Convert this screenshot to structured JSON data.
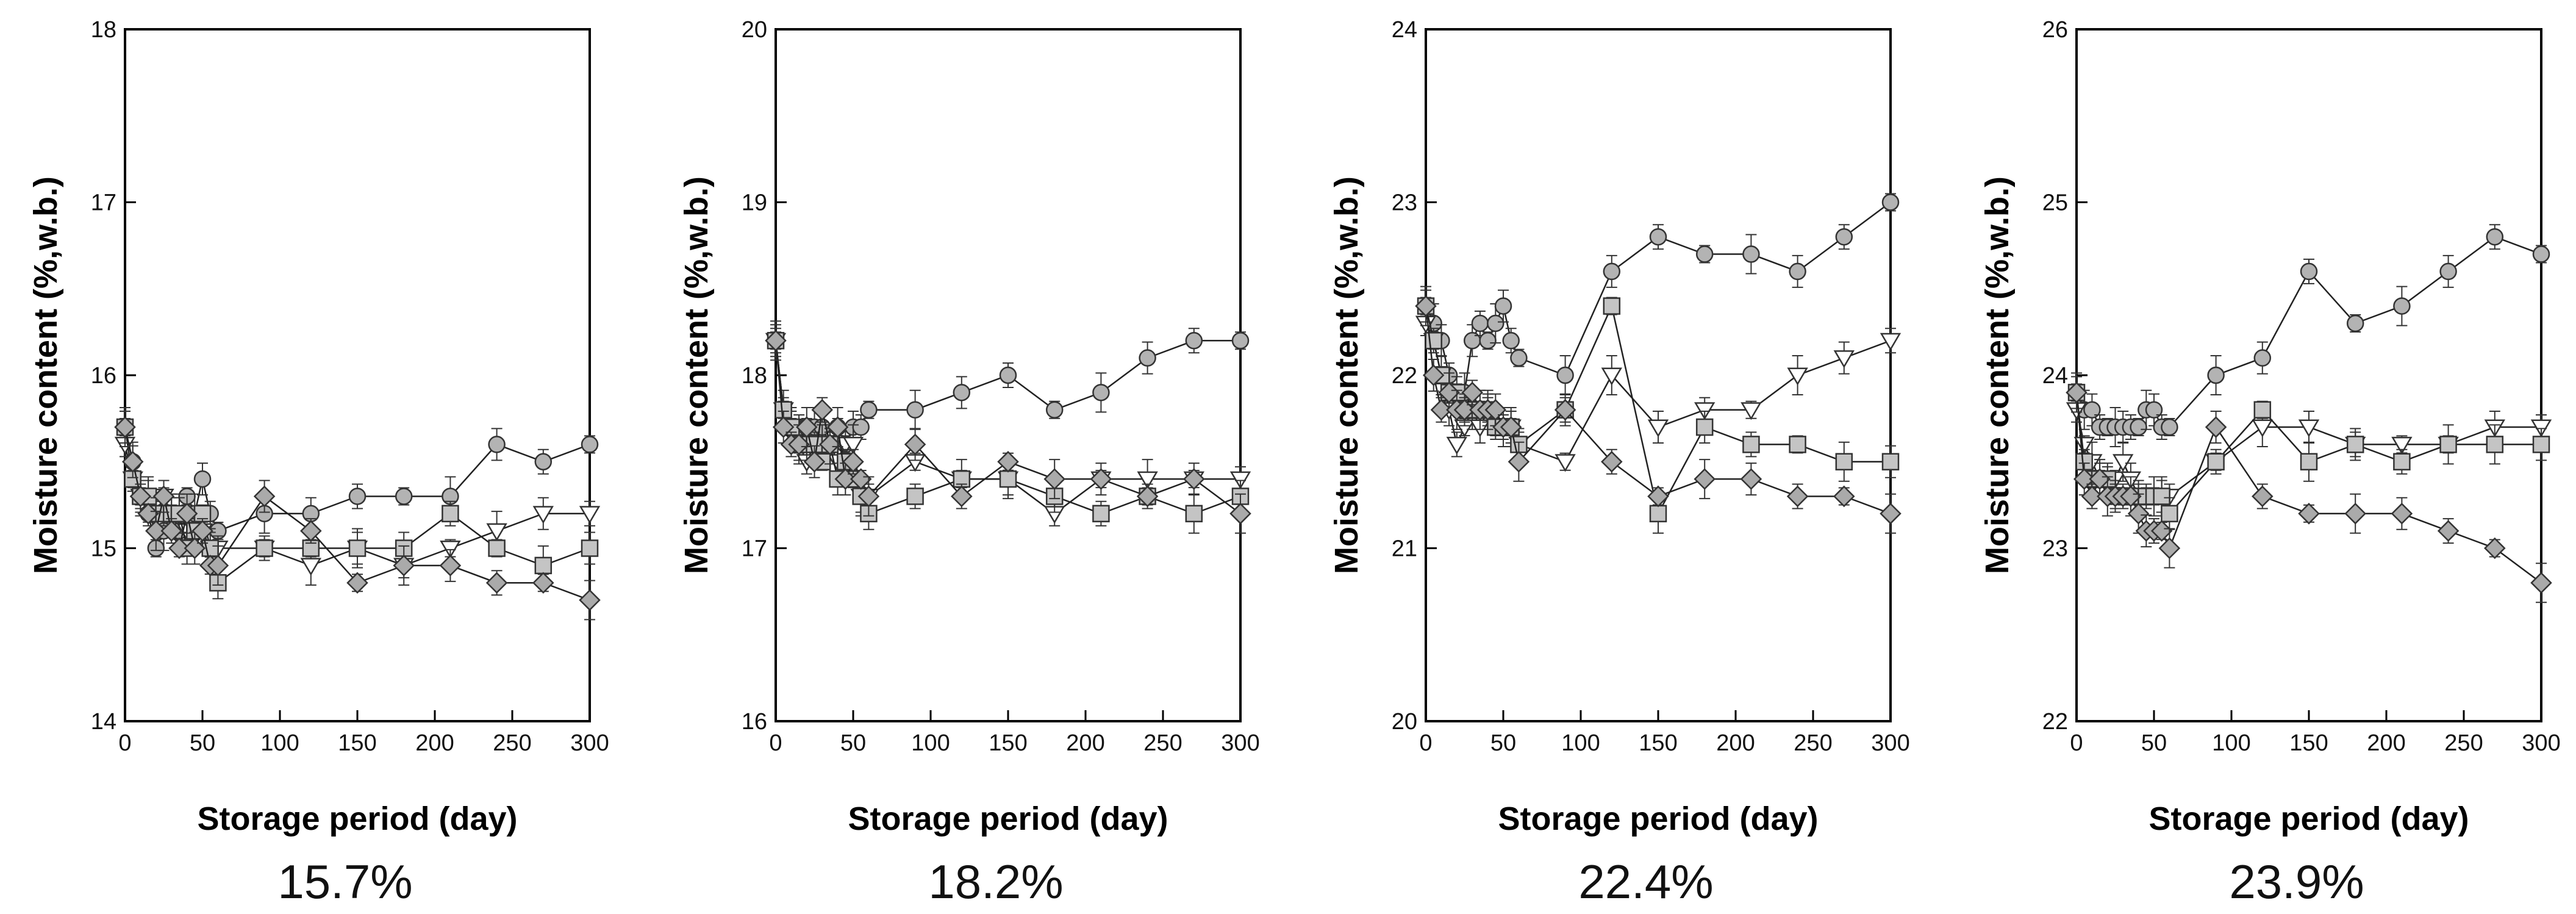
{
  "chart_data": [
    {
      "type": "line",
      "caption": "15.7%",
      "xlabel": "Storage period (day)",
      "ylabel": "Moisture content (%,w.b.)",
      "xlim": [
        0,
        300
      ],
      "ylim": [
        14,
        18
      ],
      "xticks": [
        "0",
        "50",
        "100",
        "150",
        "200",
        "250",
        "300"
      ],
      "yticks": [
        "14",
        "15",
        "16",
        "17",
        "18"
      ],
      "x": [
        0,
        5,
        10,
        15,
        20,
        25,
        30,
        35,
        40,
        45,
        50,
        55,
        60,
        90,
        120,
        150,
        180,
        210,
        240,
        270,
        300
      ],
      "series": [
        {
          "marker": "circle",
          "values": [
            15.7,
            15.5,
            15.3,
            15.2,
            15.0,
            15.1,
            15.2,
            15.1,
            15.3,
            15.2,
            15.4,
            15.2,
            15.1,
            15.2,
            15.2,
            15.3,
            15.3,
            15.3,
            15.6,
            15.5,
            15.6
          ]
        },
        {
          "marker": "triangle-down",
          "values": [
            15.6,
            15.4,
            15.3,
            15.3,
            15.2,
            15.3,
            15.2,
            15.2,
            15.1,
            15.1,
            15.1,
            15.0,
            15.0,
            15.0,
            14.9,
            15.0,
            14.9,
            15.0,
            15.1,
            15.2,
            15.2
          ]
        },
        {
          "marker": "square",
          "values": [
            15.7,
            15.4,
            15.3,
            15.3,
            15.2,
            15.2,
            15.2,
            15.2,
            15.0,
            15.1,
            15.2,
            15.0,
            14.8,
            15.0,
            15.0,
            15.0,
            15.0,
            15.2,
            15.0,
            14.9,
            15.0
          ]
        },
        {
          "marker": "diamond",
          "values": [
            15.7,
            15.5,
            15.3,
            15.2,
            15.1,
            15.3,
            15.1,
            15.0,
            15.2,
            15.0,
            15.1,
            14.9,
            14.9,
            15.3,
            15.1,
            14.8,
            14.9,
            14.9,
            14.8,
            14.8,
            14.7
          ]
        }
      ]
    },
    {
      "type": "line",
      "caption": "18.2%",
      "xlabel": "Storage period (day)",
      "ylabel": "Moisture content (%,w.b.)",
      "xlim": [
        0,
        300
      ],
      "ylim": [
        16,
        20
      ],
      "xticks": [
        "0",
        "50",
        "100",
        "150",
        "200",
        "250",
        "300"
      ],
      "yticks": [
        "16",
        "17",
        "18",
        "19",
        "20"
      ],
      "x": [
        0,
        5,
        10,
        15,
        20,
        25,
        30,
        35,
        40,
        45,
        50,
        55,
        60,
        90,
        120,
        150,
        180,
        210,
        240,
        270,
        300
      ],
      "series": [
        {
          "marker": "circle",
          "values": [
            18.2,
            17.8,
            17.7,
            17.7,
            17.7,
            17.7,
            17.7,
            17.6,
            17.7,
            17.6,
            17.7,
            17.7,
            17.8,
            17.8,
            17.9,
            18.0,
            17.8,
            17.9,
            18.1,
            18.2,
            18.2
          ]
        },
        {
          "marker": "triangle-down",
          "values": [
            18.2,
            17.8,
            17.7,
            17.6,
            17.5,
            17.6,
            17.6,
            17.6,
            17.5,
            17.6,
            17.6,
            17.3,
            17.3,
            17.5,
            17.4,
            17.4,
            17.2,
            17.4,
            17.4,
            17.4,
            17.4
          ]
        },
        {
          "marker": "square",
          "values": [
            18.2,
            17.8,
            17.7,
            17.6,
            17.6,
            17.6,
            17.5,
            17.6,
            17.4,
            17.5,
            17.4,
            17.3,
            17.2,
            17.3,
            17.4,
            17.4,
            17.3,
            17.2,
            17.3,
            17.2,
            17.3
          ]
        },
        {
          "marker": "diamond",
          "values": [
            18.2,
            17.7,
            17.6,
            17.6,
            17.7,
            17.5,
            17.8,
            17.6,
            17.7,
            17.4,
            17.5,
            17.4,
            17.3,
            17.6,
            17.3,
            17.5,
            17.4,
            17.4,
            17.3,
            17.4,
            17.2
          ]
        }
      ]
    },
    {
      "type": "line",
      "caption": "22.4%",
      "xlabel": "Storage period (day)",
      "ylabel": "Moisture content (%,w.b.)",
      "xlim": [
        0,
        300
      ],
      "ylim": [
        20,
        24
      ],
      "xticks": [
        "0",
        "50",
        "100",
        "150",
        "200",
        "250",
        "300"
      ],
      "yticks": [
        "20",
        "21",
        "22",
        "23",
        "24"
      ],
      "x": [
        0,
        5,
        10,
        15,
        20,
        25,
        30,
        35,
        40,
        45,
        50,
        55,
        60,
        90,
        120,
        150,
        180,
        210,
        240,
        270,
        300
      ],
      "series": [
        {
          "marker": "circle",
          "values": [
            22.4,
            22.3,
            22.2,
            22.0,
            21.9,
            21.9,
            22.2,
            22.3,
            22.2,
            22.3,
            22.4,
            22.2,
            22.1,
            22.0,
            22.6,
            22.8,
            22.7,
            22.7,
            22.6,
            22.8,
            23.0
          ]
        },
        {
          "marker": "triangle-down",
          "values": [
            22.3,
            22.2,
            22.0,
            21.8,
            21.6,
            21.7,
            21.8,
            21.7,
            21.8,
            21.7,
            21.7,
            21.7,
            21.6,
            21.5,
            22.0,
            21.7,
            21.8,
            21.8,
            22.0,
            22.1,
            22.2
          ]
        },
        {
          "marker": "square",
          "values": [
            22.4,
            22.2,
            22.0,
            21.9,
            21.9,
            21.8,
            21.8,
            21.8,
            21.8,
            21.7,
            21.7,
            21.7,
            21.6,
            21.8,
            22.4,
            21.2,
            21.7,
            21.6,
            21.6,
            21.5,
            21.5
          ]
        },
        {
          "marker": "diamond",
          "values": [
            22.4,
            22.0,
            21.8,
            21.9,
            21.8,
            21.8,
            21.9,
            21.8,
            21.8,
            21.8,
            21.7,
            21.7,
            21.5,
            21.8,
            21.5,
            21.3,
            21.4,
            21.4,
            21.3,
            21.3,
            21.2
          ]
        }
      ]
    },
    {
      "type": "line",
      "caption": "23.9%",
      "xlabel": "Storage period (day)",
      "ylabel": "Moisture content (%,w.b.)",
      "xlim": [
        0,
        300
      ],
      "ylim": [
        22,
        26
      ],
      "xticks": [
        "0",
        "50",
        "100",
        "150",
        "200",
        "250",
        "300"
      ],
      "yticks": [
        "22",
        "23",
        "24",
        "25",
        "26"
      ],
      "x": [
        0,
        5,
        10,
        15,
        20,
        25,
        30,
        35,
        40,
        45,
        50,
        55,
        60,
        90,
        120,
        150,
        180,
        210,
        240,
        270,
        300
      ],
      "series": [
        {
          "marker": "circle",
          "values": [
            23.9,
            23.8,
            23.8,
            23.7,
            23.7,
            23.7,
            23.7,
            23.7,
            23.7,
            23.8,
            23.8,
            23.7,
            23.7,
            24.0,
            24.1,
            24.6,
            24.3,
            24.4,
            24.6,
            24.8,
            24.7
          ]
        },
        {
          "marker": "triangle-down",
          "values": [
            23.8,
            23.6,
            23.5,
            23.4,
            23.4,
            23.4,
            23.5,
            23.4,
            23.3,
            23.3,
            23.3,
            23.3,
            23.3,
            23.5,
            23.7,
            23.7,
            23.6,
            23.6,
            23.6,
            23.7,
            23.7
          ]
        },
        {
          "marker": "square",
          "values": [
            23.9,
            23.5,
            23.4,
            23.4,
            23.4,
            23.3,
            23.3,
            23.3,
            23.3,
            23.3,
            23.3,
            23.3,
            23.2,
            23.5,
            23.8,
            23.5,
            23.6,
            23.5,
            23.6,
            23.6,
            23.6
          ]
        },
        {
          "marker": "diamond",
          "values": [
            23.9,
            23.4,
            23.3,
            23.4,
            23.3,
            23.3,
            23.3,
            23.3,
            23.2,
            23.1,
            23.1,
            23.1,
            23.0,
            23.7,
            23.3,
            23.2,
            23.2,
            23.2,
            23.1,
            23.0,
            22.8
          ]
        }
      ]
    }
  ]
}
